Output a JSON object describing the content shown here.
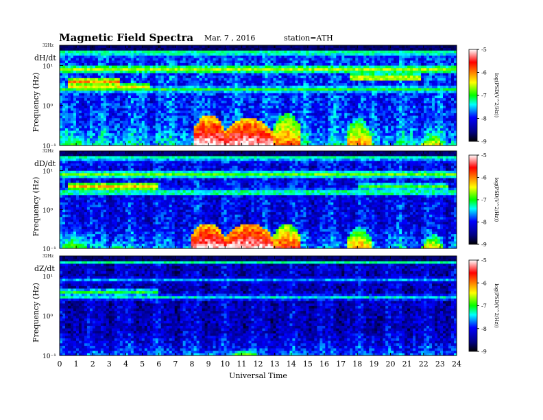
{
  "header": {
    "title": "Magnetic  Field  Spectra",
    "date": "Mar. 7  , 2016",
    "station": "station=ATH"
  },
  "colorscale": {
    "ticks": [
      "-5",
      "-6",
      "-7",
      "-8",
      "-9"
    ],
    "label": "log(PSD(V^2/Hz))",
    "colors": [
      "#ffffff",
      "#ff0000",
      "#ffff00",
      "#00ff00",
      "#00ffff",
      "#0000ff",
      "#00007f",
      "#000000"
    ]
  },
  "chart_data": [
    {
      "type": "heatmap",
      "panel_label": "dH/dt",
      "ylabel": "Frequency (Hz)",
      "y_top_label": "32Hz",
      "y_ticks": [
        "10¹",
        "10⁰",
        "10⁻¹"
      ],
      "y_scale": "log",
      "ylim": [
        0.1,
        32
      ],
      "xlim": [
        0,
        24
      ],
      "zlim": [
        -9,
        -5
      ],
      "background_level": -7.9,
      "bands": [
        {
          "f": 4,
          "t0": 0.5,
          "t1": 3.6,
          "level": -6.1
        },
        {
          "f": 3,
          "t0": 0.5,
          "t1": 5.5,
          "level": -6.4
        },
        {
          "f": 8,
          "t0": 0,
          "t1": 24,
          "level": -6.6
        },
        {
          "f": 5,
          "t0": 17.5,
          "t1": 21.8,
          "level": -6.6
        },
        {
          "f": 2.5,
          "t0": 0,
          "t1": 24,
          "level": -7.0
        },
        {
          "f": 20,
          "t0": 0,
          "t1": 24,
          "level": -7.4
        }
      ],
      "activity": [
        {
          "t0": 8.1,
          "t1": 10.0,
          "level": -5.0,
          "top_freq": 0.6
        },
        {
          "t0": 10.0,
          "t1": 12.9,
          "level": -5.0,
          "top_freq": 0.5
        },
        {
          "t0": 12.9,
          "t1": 14.6,
          "level": -5.8,
          "top_freq": 0.65
        },
        {
          "t0": 17.3,
          "t1": 18.8,
          "level": -6.0,
          "top_freq": 0.5
        },
        {
          "t0": 21.9,
          "t1": 23.2,
          "level": -6.3,
          "top_freq": 0.25
        },
        {
          "t0": 0.2,
          "t1": 1.5,
          "level": -7.0,
          "top_freq": 0.4
        },
        {
          "t0": 3.0,
          "t1": 4.0,
          "level": -7.1,
          "top_freq": 0.2
        }
      ]
    },
    {
      "type": "heatmap",
      "panel_label": "dD/dt",
      "ylabel": "Frequency (Hz)",
      "y_top_label": "32Hz",
      "y_ticks": [
        "10¹",
        "10⁰",
        "10⁻¹"
      ],
      "y_scale": "log",
      "ylim": [
        0.1,
        32
      ],
      "xlim": [
        0,
        24
      ],
      "zlim": [
        -9,
        -5
      ],
      "background_level": -8.1,
      "bands": [
        {
          "f": 4,
          "t0": 0.5,
          "t1": 6.0,
          "level": -6.2
        },
        {
          "f": 8,
          "t0": 0,
          "t1": 24,
          "level": -6.8
        },
        {
          "f": 4,
          "t0": 18.0,
          "t1": 23.5,
          "level": -6.9
        },
        {
          "f": 2.8,
          "t0": 0,
          "t1": 24,
          "level": -7.3
        },
        {
          "f": 20,
          "t0": 0,
          "t1": 24,
          "level": -7.6
        }
      ],
      "activity": [
        {
          "t0": 7.9,
          "t1": 10.0,
          "level": -5.0,
          "top_freq": 0.45
        },
        {
          "t0": 10.0,
          "t1": 12.9,
          "level": -5.0,
          "top_freq": 0.45
        },
        {
          "t0": 12.9,
          "t1": 14.6,
          "level": -5.6,
          "top_freq": 0.45
        },
        {
          "t0": 17.3,
          "t1": 18.9,
          "level": -6.0,
          "top_freq": 0.35
        },
        {
          "t0": 21.9,
          "t1": 23.2,
          "level": -6.2,
          "top_freq": 0.25
        },
        {
          "t0": 0.2,
          "t1": 1.6,
          "level": -6.9,
          "top_freq": 0.5
        },
        {
          "t0": 3.0,
          "t1": 4.0,
          "level": -7.0,
          "top_freq": 0.2
        }
      ]
    },
    {
      "type": "heatmap",
      "panel_label": "dZ/dt",
      "ylabel": "Frequency (Hz)",
      "y_top_label": "32Hz",
      "y_ticks": [
        "10¹",
        "10⁰",
        "10⁻¹"
      ],
      "y_scale": "log",
      "ylim": [
        0.1,
        32
      ],
      "xlim": [
        0,
        24
      ],
      "zlim": [
        -9,
        -5
      ],
      "background_level": -8.3,
      "bands": [
        {
          "f": 4,
          "t0": 0,
          "t1": 6.0,
          "level": -7.0
        },
        {
          "f": 3,
          "t0": 0,
          "t1": 24,
          "level": -7.4
        },
        {
          "f": 8,
          "t0": 0,
          "t1": 24,
          "level": -7.6
        }
      ],
      "activity": [
        {
          "t0": 8.0,
          "t1": 10.0,
          "level": -7.3,
          "top_freq": 0.15
        },
        {
          "t0": 10.0,
          "t1": 12.5,
          "level": -6.6,
          "top_freq": 0.15
        },
        {
          "t0": 0,
          "t1": 24,
          "level": -7.8,
          "top_freq": 0.18
        }
      ]
    }
  ],
  "xaxis": {
    "label": "Universal Time",
    "ticks": [
      "0",
      "1",
      "2",
      "3",
      "4",
      "5",
      "6",
      "7",
      "8",
      "9",
      "10",
      "11",
      "12",
      "13",
      "14",
      "15",
      "16",
      "17",
      "18",
      "19",
      "20",
      "21",
      "22",
      "23",
      "24"
    ]
  }
}
